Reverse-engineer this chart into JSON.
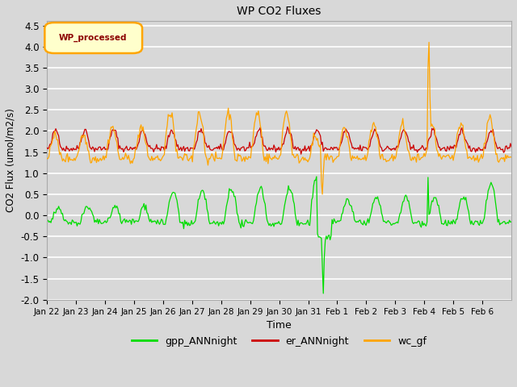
{
  "title": "WP CO2 Fluxes",
  "xlabel": "Time",
  "ylabel": "CO2 Flux (umol/m2/s)",
  "ylim": [
    -2.0,
    4.6
  ],
  "yticks": [
    -2.0,
    -1.5,
    -1.0,
    -0.5,
    0.0,
    0.5,
    1.0,
    1.5,
    2.0,
    2.5,
    3.0,
    3.5,
    4.0,
    4.5
  ],
  "xtick_labels": [
    "Jan 22",
    "Jan 23",
    "Jan 24",
    "Jan 25",
    "Jan 26",
    "Jan 27",
    "Jan 28",
    "Jan 29",
    "Jan 30",
    "Jan 31",
    "Feb 1",
    "Feb 2",
    "Feb 3",
    "Feb 4",
    "Feb 5",
    "Feb 6"
  ],
  "bg_color": "#d8d8d8",
  "plot_bg_color": "#d8d8d8",
  "grid_color": "#ffffff",
  "line_colors": {
    "gpp": "#00dd00",
    "er": "#cc0000",
    "wc": "#ffa500"
  },
  "legend_labels": [
    "gpp_ANNnight",
    "er_ANNnight",
    "wc_gf"
  ],
  "annotation_text": "WP_processed",
  "annotation_border_color": "#ffa500",
  "annotation_text_color": "#8b0000",
  "n_points": 480,
  "random_seed": 42
}
